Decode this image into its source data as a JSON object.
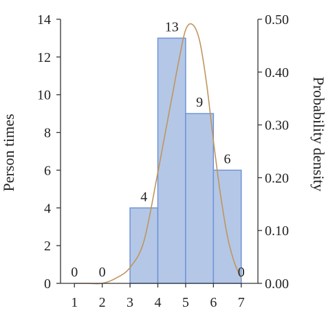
{
  "chart_data": {
    "type": "bar",
    "x_ticks": [
      "1",
      "2",
      "3",
      "4",
      "5",
      "6",
      "7"
    ],
    "bins": [
      {
        "start": 3,
        "end": 4,
        "value": 4
      },
      {
        "start": 4,
        "end": 5,
        "value": 13
      },
      {
        "start": 5,
        "end": 6,
        "value": 9
      },
      {
        "start": 6,
        "end": 7,
        "value": 6
      }
    ],
    "data_labels": [
      {
        "x": 1.0,
        "text": "0",
        "value": 0
      },
      {
        "x": 2.0,
        "text": "0",
        "value": 0
      },
      {
        "x": 3.5,
        "text": "4",
        "value": 4
      },
      {
        "x": 4.5,
        "text": "13",
        "value": 13
      },
      {
        "x": 5.5,
        "text": "9",
        "value": 9
      },
      {
        "x": 6.5,
        "text": "6",
        "value": 6
      },
      {
        "x": 7.0,
        "text": "0",
        "value": 0
      }
    ],
    "ylabel": "Person times",
    "y2label": "Probability density",
    "xlim": [
      0.5,
      7.6
    ],
    "ylim": [
      0,
      14
    ],
    "y_ticks": [
      0,
      2,
      4,
      6,
      8,
      10,
      12,
      14
    ],
    "y2lim": [
      0,
      0.5
    ],
    "y2_ticks": [
      "0.00",
      "0.10",
      "0.20",
      "0.30",
      "0.40",
      "0.50"
    ],
    "density_curve": {
      "x": [
        1.0,
        1.5,
        2.0,
        2.5,
        3.0,
        3.5,
        4.0,
        4.25,
        4.5,
        4.75,
        5.0,
        5.25,
        5.5,
        5.75,
        6.0,
        6.25,
        6.5,
        6.75,
        7.0
      ],
      "y": [
        0.0,
        0.0,
        0.0,
        0.01,
        0.03,
        0.08,
        0.21,
        0.28,
        0.35,
        0.42,
        0.48,
        0.49,
        0.46,
        0.38,
        0.27,
        0.17,
        0.09,
        0.04,
        0.01
      ]
    },
    "grid": false,
    "legend": "none",
    "colors": {
      "bar_fill": "#b4c7e7",
      "bar_edge": "#6f93d6",
      "curve": "#c0955a",
      "axis": "#333333"
    }
  }
}
